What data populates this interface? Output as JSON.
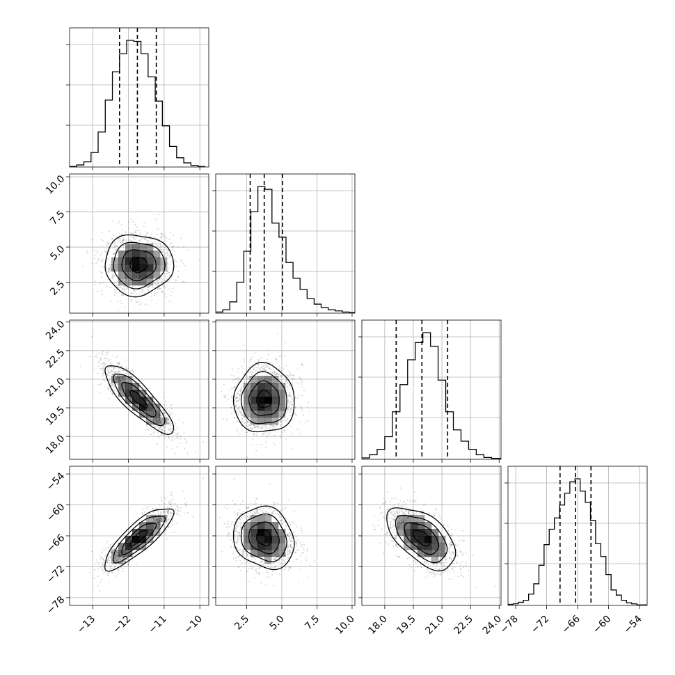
{
  "chart_data": {
    "type": "corner",
    "grid": true,
    "parameters": [
      {
        "range": [
          -13.65,
          -9.75
        ],
        "ticks": [
          -13,
          -12,
          -11,
          -10
        ],
        "tick_labels": [
          "−13",
          "−12",
          "−11",
          "−10"
        ]
      },
      {
        "range": [
          0.3,
          10.2
        ],
        "ticks": [
          2.5,
          5.0,
          7.5,
          10.0
        ],
        "tick_labels": [
          "2.5",
          "5.0",
          "7.5",
          "10.0"
        ]
      },
      {
        "range": [
          16.8,
          24.1
        ],
        "ticks": [
          18.0,
          19.5,
          21.0,
          22.5,
          24.0
        ],
        "tick_labels": [
          "18.0",
          "19.5",
          "21.0",
          "22.5",
          "24.0"
        ]
      },
      {
        "range": [
          -79.5,
          -52.5
        ],
        "ticks": [
          -78,
          -72,
          -66,
          -60,
          -54
        ],
        "tick_labels": [
          "−78",
          "−72",
          "−66",
          "−60",
          "−54"
        ]
      }
    ],
    "diagonal_histograms": [
      {
        "bin_edges": [
          -13.65,
          -13.45,
          -13.25,
          -13.05,
          -12.85,
          -12.65,
          -12.45,
          -12.25,
          -12.05,
          -11.85,
          -11.65,
          -11.45,
          -11.25,
          -11.05,
          -10.85,
          -10.65,
          -10.45,
          -10.25,
          -10.05,
          -9.85
        ],
        "counts": [
          1,
          4,
          10,
          28,
          68,
          130,
          185,
          220,
          246,
          244,
          220,
          175,
          128,
          80,
          40,
          18,
          8,
          3,
          1
        ],
        "quantiles": [
          -12.25,
          -11.75,
          -11.22
        ]
      },
      {
        "bin_edges": [
          0.3,
          0.8,
          1.3,
          1.8,
          2.3,
          2.8,
          3.3,
          3.8,
          4.3,
          4.8,
          5.3,
          5.8,
          6.3,
          6.8,
          7.3,
          7.8,
          8.3,
          8.8,
          9.3,
          9.8,
          10.2
        ],
        "counts": [
          2,
          6,
          20,
          55,
          110,
          180,
          225,
          220,
          160,
          135,
          90,
          62,
          42,
          26,
          16,
          10,
          6,
          4,
          2,
          1
        ],
        "quantiles": [
          2.75,
          3.75,
          5.05
        ]
      },
      {
        "bin_edges": [
          16.8,
          17.2,
          17.6,
          18.0,
          18.4,
          18.8,
          19.2,
          19.6,
          20.0,
          20.4,
          20.8,
          21.2,
          21.6,
          22.0,
          22.4,
          22.8,
          23.2,
          23.6,
          24.1
        ],
        "counts": [
          3,
          10,
          22,
          50,
          105,
          165,
          220,
          258,
          280,
          250,
          175,
          105,
          65,
          40,
          22,
          10,
          4,
          2
        ],
        "quantiles": [
          18.6,
          19.95,
          21.3
        ]
      },
      {
        "bin_edges": [
          -79.5,
          -78.5,
          -77.5,
          -76.5,
          -75.5,
          -74.5,
          -73.5,
          -72.5,
          -71.5,
          -70.5,
          -69.5,
          -68.5,
          -67.5,
          -66.5,
          -65.5,
          -64.5,
          -63.5,
          -62.5,
          -61.5,
          -60.5,
          -59.5,
          -58.5,
          -57.5,
          -56.5,
          -55.5,
          -54.5,
          -53.5,
          -52.5
        ],
        "counts": [
          2,
          3,
          6,
          10,
          22,
          42,
          78,
          118,
          148,
          170,
          195,
          218,
          240,
          246,
          222,
          200,
          165,
          120,
          95,
          60,
          30,
          20,
          10,
          5,
          3,
          1,
          1
        ],
        "quantiles": [
          -69.4,
          -66.4,
          -63.4
        ]
      }
    ],
    "pairs": [
      {
        "row": 1,
        "col": 0,
        "mean": [
          -11.72,
          3.75
        ],
        "std": [
          0.48,
          1.08
        ],
        "corr": 0.0
      },
      {
        "row": 2,
        "col": 0,
        "mean": [
          -11.72,
          19.95
        ],
        "std": [
          0.48,
          0.9
        ],
        "corr": -0.84
      },
      {
        "row": 2,
        "col": 1,
        "mean": [
          3.75,
          19.95
        ],
        "std": [
          1.08,
          0.9
        ],
        "corr": 0.0
      },
      {
        "row": 3,
        "col": 0,
        "mean": [
          -11.72,
          -66.4
        ],
        "std": [
          0.48,
          3.0
        ],
        "corr": 0.83
      },
      {
        "row": 3,
        "col": 1,
        "mean": [
          3.75,
          -66.4
        ],
        "std": [
          1.08,
          3.0
        ],
        "corr": -0.15
      },
      {
        "row": 3,
        "col": 2,
        "mean": [
          19.95,
          -66.4
        ],
        "std": [
          0.9,
          3.0
        ],
        "corr": -0.55
      }
    ],
    "contour_levels_sigma": [
      0.5,
      1.0,
      1.5,
      2.0
    ],
    "colors": {
      "points": "#000000",
      "density": "#000000",
      "lines": "#000000",
      "grid": "#b0b0b0"
    }
  }
}
